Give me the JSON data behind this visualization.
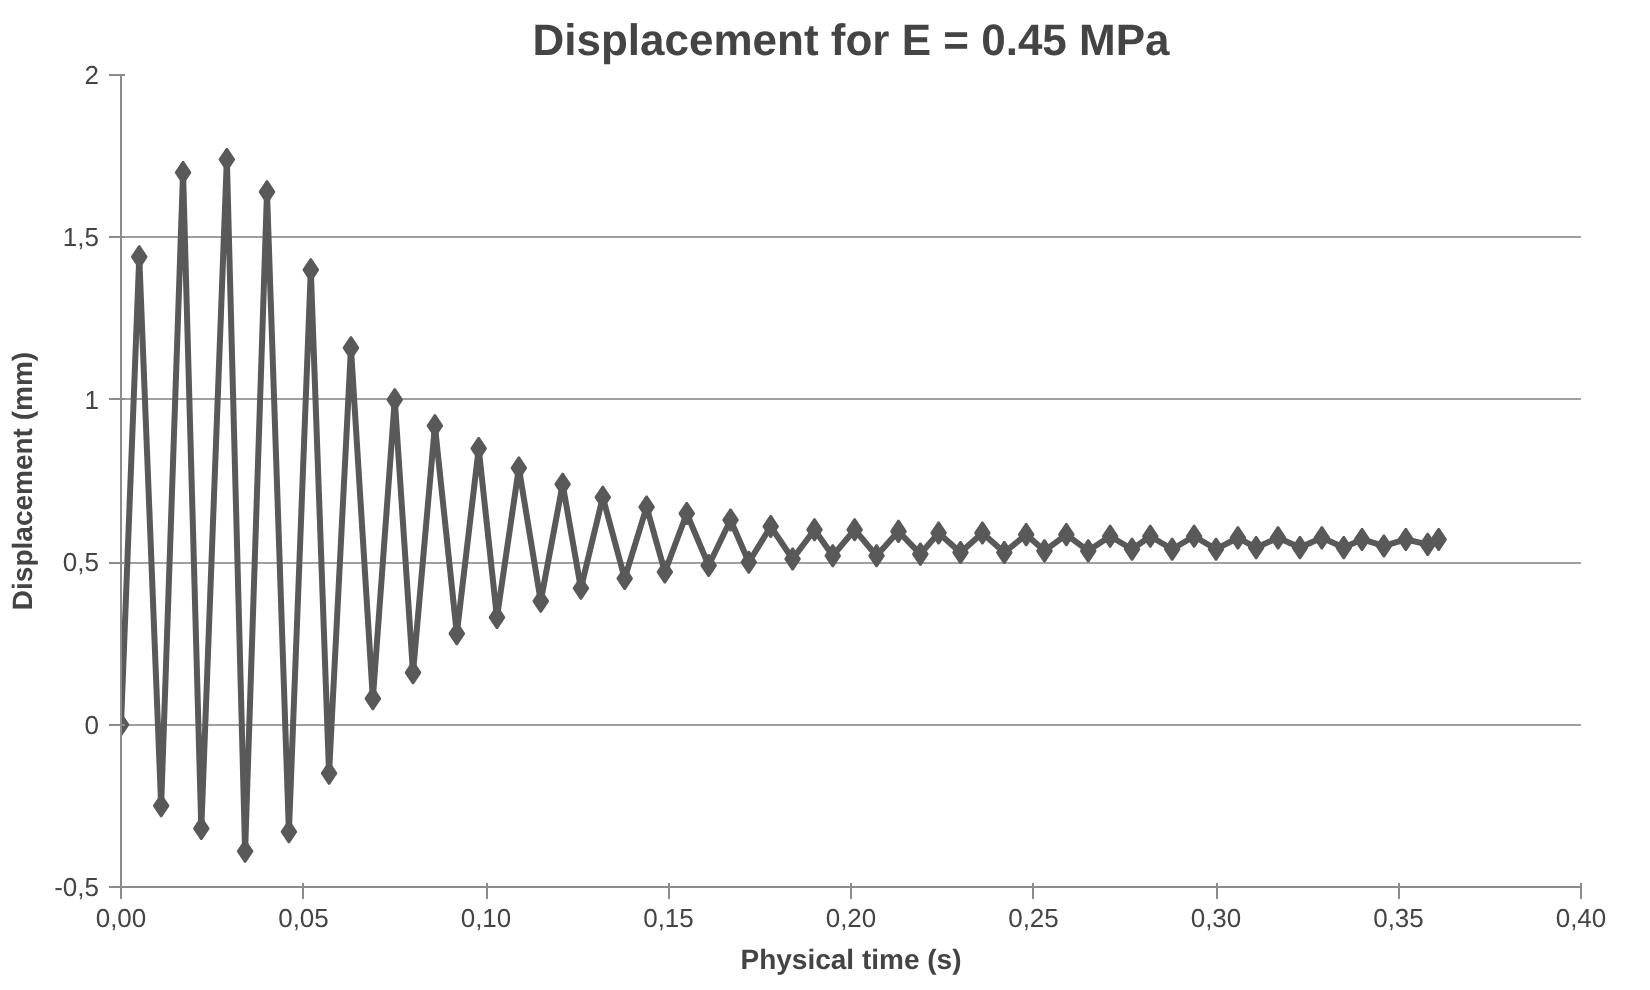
{
  "chart_data": {
    "type": "line",
    "title": "Displacement for E = 0.45 MPa",
    "xlabel": "Physical time (s)",
    "ylabel": "Displacement (mm)",
    "x": [
      0,
      0.005,
      0.011,
      0.017,
      0.022,
      0.029,
      0.034,
      0.04,
      0.046,
      0.052,
      0.057,
      0.063,
      0.069,
      0.075,
      0.08,
      0.086,
      0.092,
      0.098,
      0.103,
      0.109,
      0.115,
      0.121,
      0.126,
      0.132,
      0.138,
      0.144,
      0.149,
      0.155,
      0.161,
      0.167,
      0.172,
      0.178,
      0.184,
      0.19,
      0.195,
      0.201,
      0.207,
      0.213,
      0.219,
      0.224,
      0.23,
      0.236,
      0.242,
      0.248,
      0.253,
      0.259,
      0.265,
      0.271,
      0.277,
      0.282,
      0.288,
      0.294,
      0.3,
      0.306,
      0.311,
      0.317,
      0.323,
      0.329,
      0.335,
      0.34,
      0.346,
      0.352,
      0.358,
      0.361
    ],
    "series": [
      {
        "color": "#595959",
        "values": [
          0,
          1.44,
          -0.25,
          1.7,
          -0.32,
          1.74,
          -0.39,
          1.64,
          -0.33,
          1.4,
          -0.15,
          1.16,
          0.08,
          1.0,
          0.16,
          0.92,
          0.28,
          0.85,
          0.33,
          0.79,
          0.38,
          0.74,
          0.42,
          0.7,
          0.45,
          0.67,
          0.47,
          0.65,
          0.49,
          0.63,
          0.5,
          0.61,
          0.51,
          0.6,
          0.52,
          0.6,
          0.52,
          0.595,
          0.525,
          0.59,
          0.53,
          0.59,
          0.53,
          0.585,
          0.535,
          0.585,
          0.535,
          0.58,
          0.54,
          0.58,
          0.54,
          0.58,
          0.54,
          0.575,
          0.545,
          0.575,
          0.545,
          0.575,
          0.545,
          0.57,
          0.55,
          0.57,
          0.555,
          0.57
        ]
      }
    ],
    "xlim": [
      0,
      0.4
    ],
    "xticks": [
      {
        "value": 0,
        "label": "0,00"
      },
      {
        "value": 0.05,
        "label": "0,05"
      },
      {
        "value": 0.1,
        "label": "0,10"
      },
      {
        "value": 0.15,
        "label": "0,15"
      },
      {
        "value": 0.2,
        "label": "0,20"
      },
      {
        "value": 0.25,
        "label": "0,25"
      },
      {
        "value": 0.3,
        "label": "0,30"
      },
      {
        "value": 0.35,
        "label": "0,35"
      },
      {
        "value": 0.4,
        "label": "0,40"
      }
    ],
    "ylim": [
      -0.5,
      2
    ],
    "yticks": [
      {
        "value": -0.5,
        "label": "-0,5"
      },
      0,
      {
        "value": 0.5,
        "label": "0,5"
      },
      1,
      {
        "value": 1.5,
        "label": "1,5"
      },
      2
    ],
    "grid": "y",
    "marker": "diamond",
    "line_style": "solid"
  }
}
